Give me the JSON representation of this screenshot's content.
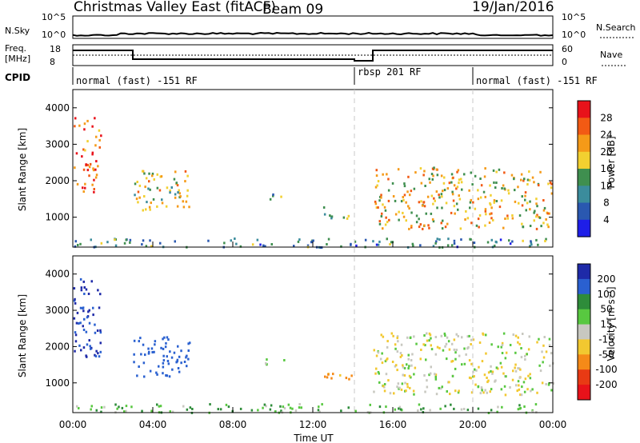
{
  "header": {
    "title": "Christmas Valley East (fitACF)",
    "beam": "Beam 09",
    "date": "19/Jan/2016"
  },
  "nsky": {
    "label": "N.Sky",
    "axis_top": "10^5",
    "axis_bottom": "10^0",
    "right_label": "N.Search",
    "right_axis_top": "10^5",
    "right_axis_bottom": "10^0"
  },
  "freq": {
    "label": "Freq.",
    "unit": "[MHz]",
    "axis_top": "18",
    "axis_bottom": "8",
    "right_label": "Nave",
    "right_axis_top": "60",
    "right_axis_bottom": "0"
  },
  "cpid": {
    "label": "CPID",
    "segments": [
      "normal (fast) -151 RF",
      "rbsp 201 RF",
      "normal (fast) -151 RF"
    ]
  },
  "x_axis": {
    "label": "Time UT",
    "ticks": [
      "00:00",
      "04:00",
      "08:00",
      "12:00",
      "16:00",
      "20:00",
      "00:00"
    ]
  },
  "power_panel": {
    "ylabel": "Slant Range [km]",
    "colorbar_label": "Power [dB]",
    "colorbar_ticks": [
      "28",
      "24",
      "20",
      "16",
      "12",
      "8",
      "4"
    ],
    "colors": [
      "#e8121a",
      "#f25a14",
      "#f59a18",
      "#f2d030",
      "#3f8f4f",
      "#3b8c9c",
      "#2a58b0",
      "#1e1ee8"
    ]
  },
  "velocity_panel": {
    "ylabel": "Slant Range [km]",
    "colorbar_label": "Velocity [m s⁻¹]",
    "colorbar_ticks": [
      "200",
      "100",
      "50",
      "15",
      "-15",
      "-50",
      "-100",
      "-200"
    ],
    "colors": [
      "#1e2aa8",
      "#2a60d0",
      "#2e8c3a",
      "#58c840",
      "#c8c8c0",
      "#f2c830",
      "#f58a18",
      "#e83a14",
      "#e8121a"
    ]
  },
  "chart_data": [
    {
      "type": "heatmap",
      "title": "Power",
      "xlabel": "Time UT",
      "ylabel": "Slant Range [km]",
      "xlim": [
        0,
        24
      ],
      "ylim": [
        180,
        4500
      ],
      "yticks": [
        1000,
        2000,
        3000,
        4000
      ],
      "colorbar": {
        "label": "Power [dB]",
        "range": [
          0,
          30
        ]
      },
      "regions": [
        {
          "t": [
            0.0,
            1.4
          ],
          "r": [
            1700,
            3800
          ],
          "power_db": 26
        },
        {
          "t": [
            3.0,
            5.8
          ],
          "r": [
            1200,
            2300
          ],
          "power_db": 18
        },
        {
          "t": [
            9.6,
            10.6
          ],
          "r": [
            1500,
            1700
          ],
          "power_db": 10
        },
        {
          "t": [
            12.5,
            13.9
          ],
          "r": [
            950,
            1300
          ],
          "power_db": 14
        },
        {
          "t": [
            15.0,
            24.0
          ],
          "r": [
            700,
            2400
          ],
          "power_db": 20
        },
        {
          "t": [
            0.0,
            24.0
          ],
          "r": [
            200,
            450
          ],
          "power_db": 10
        }
      ]
    },
    {
      "type": "heatmap",
      "title": "Velocity",
      "xlabel": "Time UT",
      "ylabel": "Slant Range [km]",
      "xlim": [
        0,
        24
      ],
      "ylim": [
        180,
        4500
      ],
      "yticks": [
        1000,
        2000,
        3000,
        4000
      ],
      "colorbar": {
        "label": "Velocity [m s⁻¹]",
        "range": [
          -200,
          200
        ]
      },
      "regions": [
        {
          "t": [
            0.0,
            1.4
          ],
          "r": [
            1700,
            3900
          ],
          "velocity": 200
        },
        {
          "t": [
            3.0,
            5.8
          ],
          "r": [
            1200,
            2300
          ],
          "velocity": 150
        },
        {
          "t": [
            9.6,
            10.6
          ],
          "r": [
            1500,
            1700
          ],
          "velocity": 40
        },
        {
          "t": [
            12.5,
            13.9
          ],
          "r": [
            950,
            1300
          ],
          "velocity": -60
        },
        {
          "t": [
            15.0,
            24.0
          ],
          "r": [
            700,
            2400
          ],
          "velocity": 0
        },
        {
          "t": [
            0.0,
            24.0
          ],
          "r": [
            200,
            450
          ],
          "velocity": 40
        }
      ]
    }
  ]
}
